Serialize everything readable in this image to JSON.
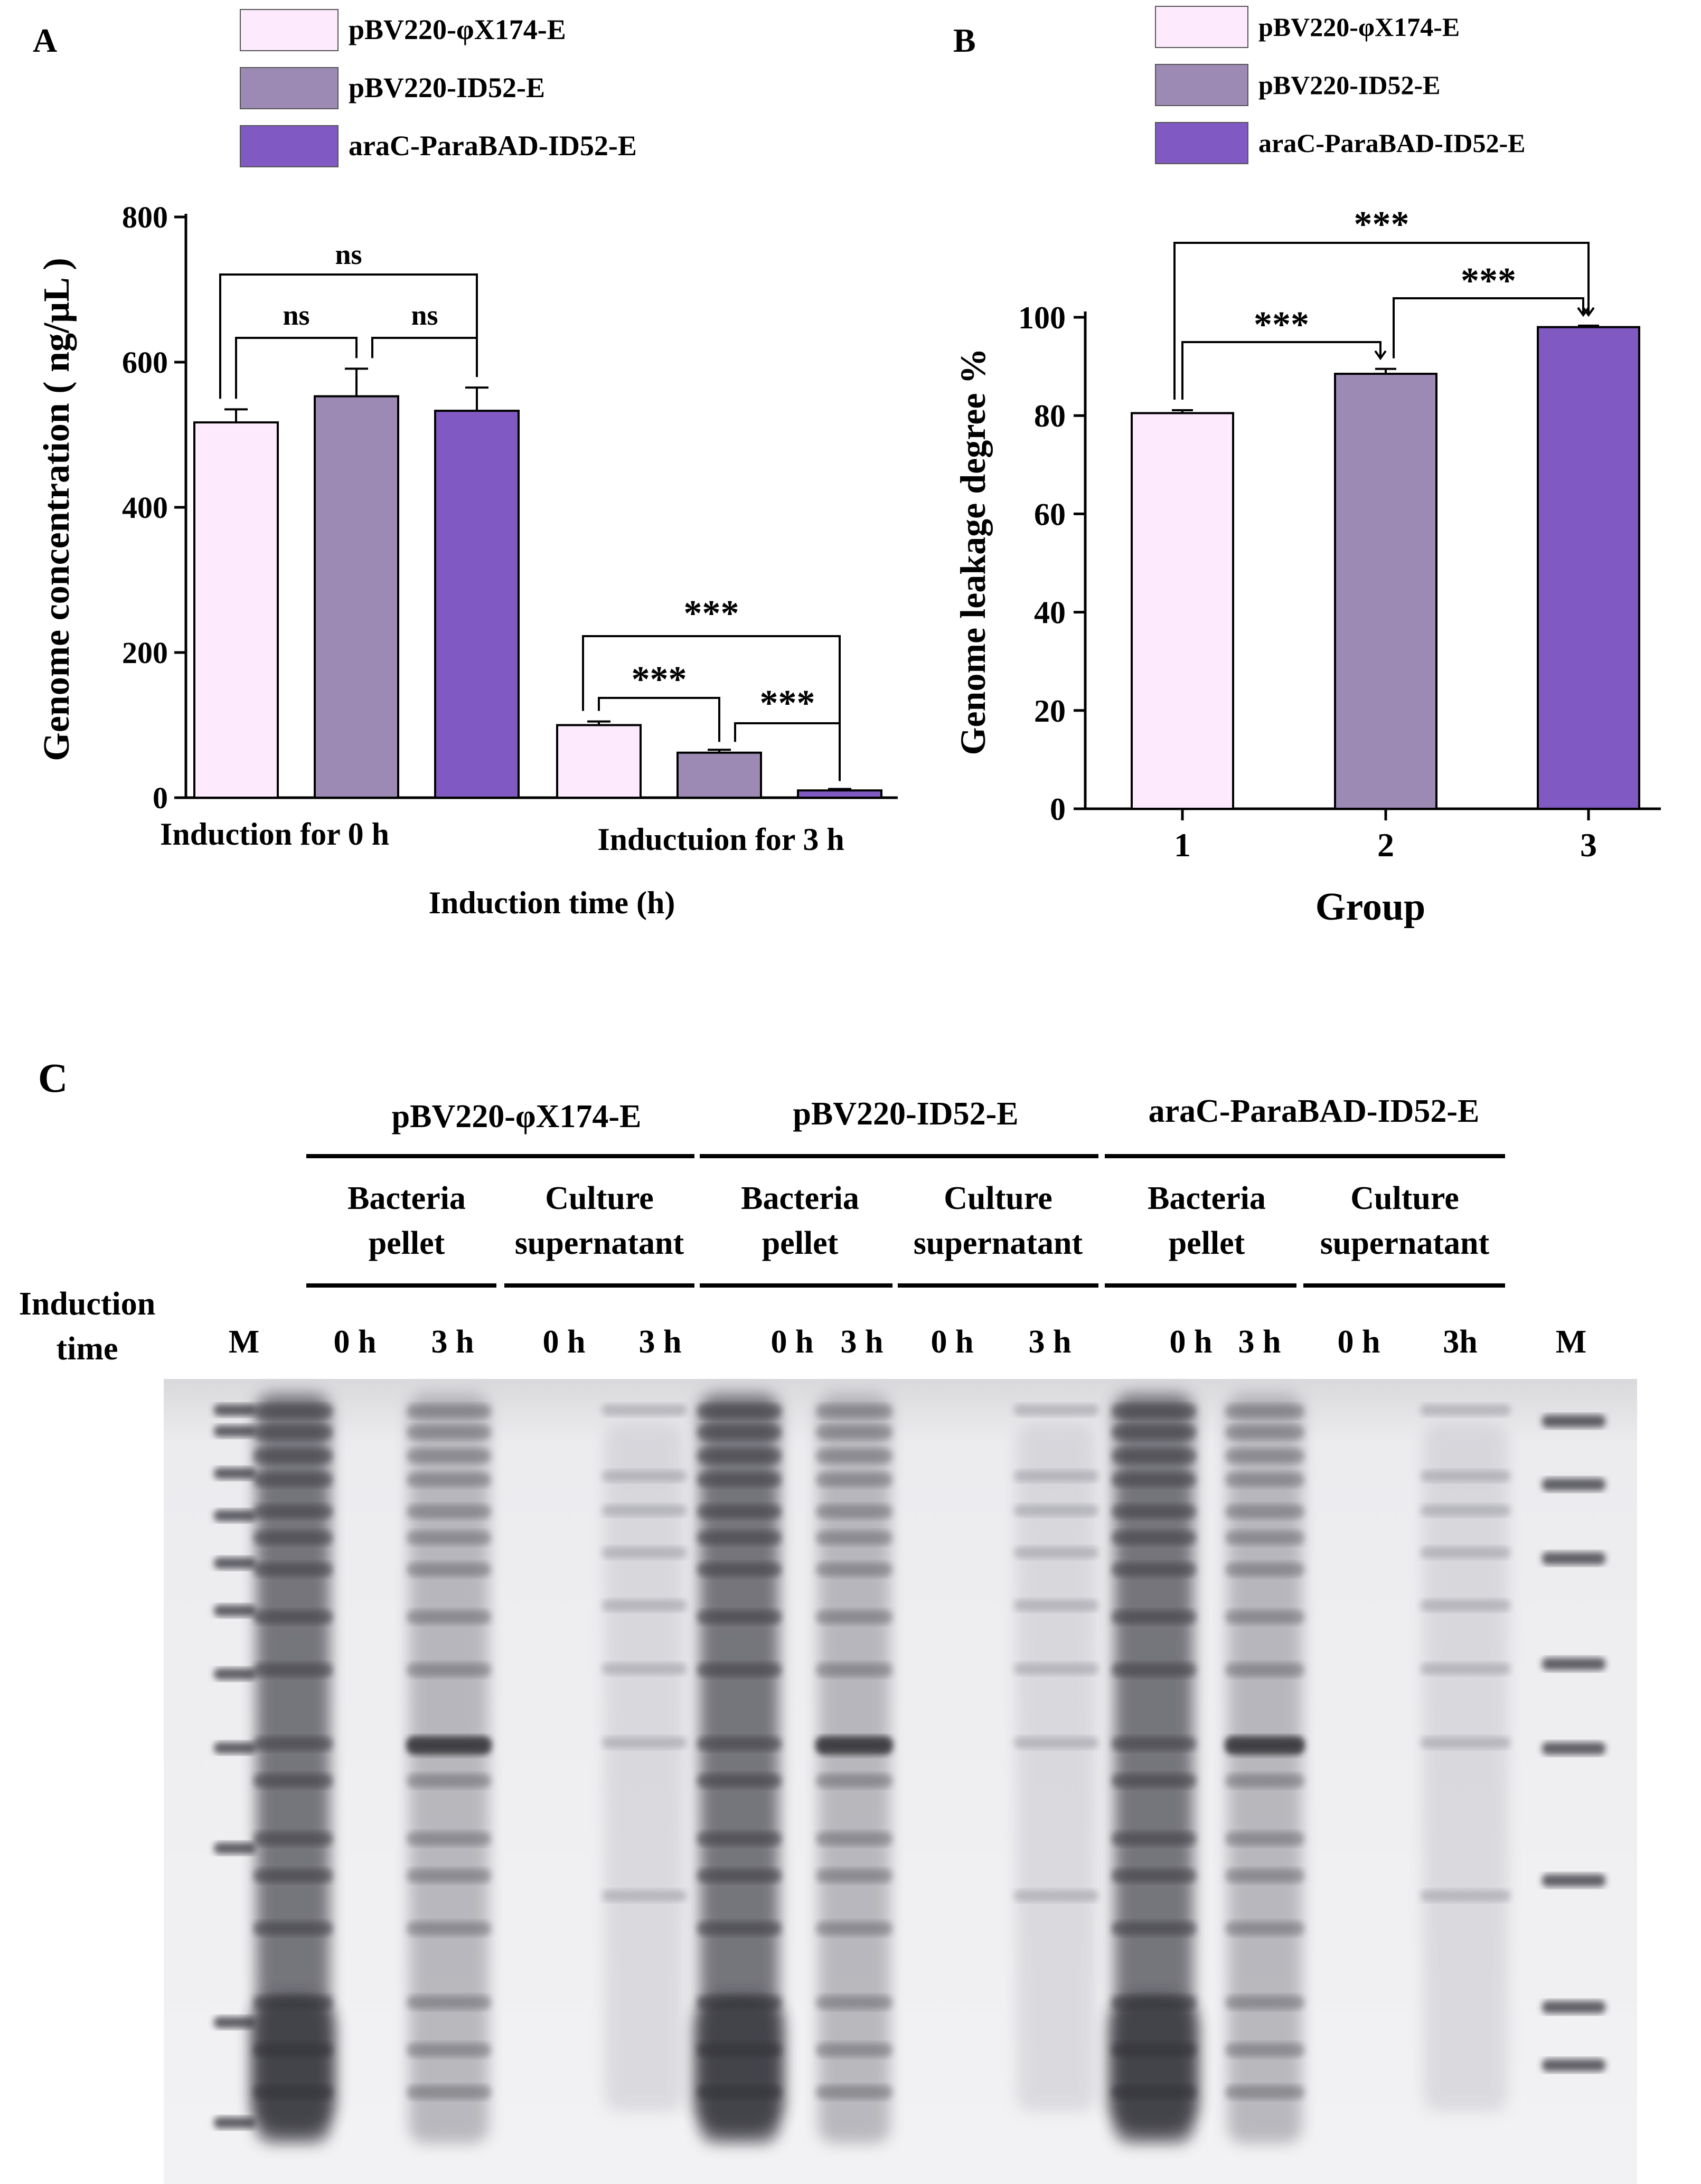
{
  "colors": {
    "light": "#FDEBFD",
    "mid": "#9C8AB5",
    "dark": "#8159C2",
    "axis": "#000000"
  },
  "legend": [
    {
      "label": "pBV220-φX174-E",
      "color_key": "light"
    },
    {
      "label": "pBV220-ID52-E",
      "color_key": "mid"
    },
    {
      "label": "araC-ParaBAD-ID52-E",
      "color_key": "dark"
    }
  ],
  "panel_a": {
    "letter": "A",
    "ylabel": "Genome concentration ( ng/μL )",
    "xlabel": "Induction time (h)",
    "yticks": [
      "0",
      "200",
      "400",
      "600",
      "800"
    ],
    "group_labels": [
      "Induction for  0 h",
      "Inductuion for 3 h"
    ],
    "sig": {
      "ns_outer": "ns",
      "ns_left": "ns",
      "ns_right": "ns",
      "star_outer": "***",
      "star_left": "***",
      "star_right": "***"
    }
  },
  "panel_b": {
    "letter": "B",
    "ylabel": "Genome leakage degree %",
    "xlabel": "Group",
    "yticks": [
      "0",
      "20",
      "40",
      "60",
      "80",
      "100"
    ],
    "sig": {
      "outer": "***",
      "left": "***",
      "right": "***"
    }
  },
  "chart_data": [
    {
      "type": "bar",
      "title": "A",
      "xlabel": "Induction time (h)",
      "ylabel": "Genome concentration ( ng/μL )",
      "ylim": [
        0,
        800
      ],
      "categories": [
        "Induction for  0 h",
        "Inductuion for 3 h"
      ],
      "series": [
        {
          "name": "pBV220-φX174-E",
          "values": [
            517,
            100
          ],
          "errors": [
            18,
            5
          ]
        },
        {
          "name": "pBV220-ID52-E",
          "values": [
            553,
            62
          ],
          "errors": [
            38,
            4
          ]
        },
        {
          "name": "araC-ParaBAD-ID52-E",
          "values": [
            533,
            10
          ],
          "errors": [
            32,
            2
          ]
        }
      ],
      "annotations": [
        "ns",
        "ns",
        "ns",
        "***",
        "***",
        "***"
      ]
    },
    {
      "type": "bar",
      "title": "B",
      "xlabel": "Group",
      "ylabel": "Genome leakage degree %",
      "ylim": [
        0,
        100
      ],
      "categories": [
        "1",
        "2",
        "3"
      ],
      "values": [
        80.5,
        88.5,
        98
      ],
      "errors": [
        0.6,
        1.0,
        0.3
      ],
      "annotations": [
        "***",
        "***",
        "***"
      ]
    }
  ],
  "panel_c": {
    "letter": "C",
    "constructs": [
      "pBV220-φX174-E",
      "pBV220-ID52-E",
      "araC-ParaBAD-ID52-E"
    ],
    "fractions": [
      [
        "Bacteria",
        "pellet"
      ],
      [
        "Culture",
        "supernatant"
      ]
    ],
    "row_label": [
      "Induction",
      "time"
    ],
    "lanes": [
      "M",
      "0 h",
      "3 h",
      "0 h",
      "3 h",
      "0 h",
      "3 h",
      "0 h",
      "3 h",
      "0 h",
      "3 h",
      "0 h",
      "3h",
      "M"
    ]
  }
}
